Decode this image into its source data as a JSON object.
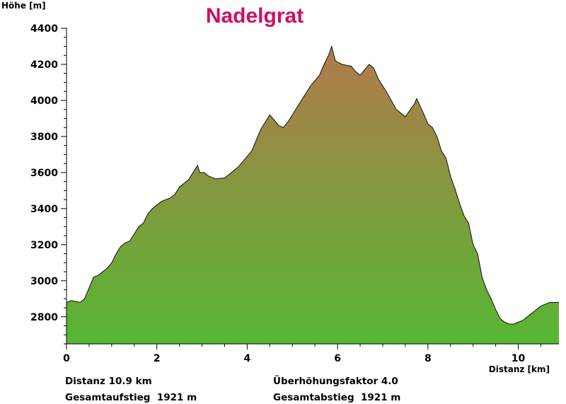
{
  "chart_data": {
    "type": "area",
    "title": "Nadelgrat",
    "ylabel": "Höhe [m]",
    "xlabel": "Distanz [km]",
    "xlim": [
      0,
      10.9
    ],
    "ylim": [
      2650,
      4400
    ],
    "xticks": [
      0,
      2,
      4,
      6,
      8,
      10
    ],
    "yticks": [
      2800,
      3000,
      3200,
      3400,
      3600,
      3800,
      4000,
      4200,
      4400
    ],
    "grid": false,
    "colors": {
      "bottom": "#55b733",
      "top": "#b17a4b",
      "line": "#111111",
      "title": "#cf0e60"
    },
    "series": [
      {
        "x": [
          0,
          0.1,
          0.2,
          0.3,
          0.4,
          0.5,
          0.6,
          0.7,
          0.8,
          0.9,
          1.0,
          1.1,
          1.2,
          1.3,
          1.4,
          1.5,
          1.6,
          1.7,
          1.8,
          1.9,
          2.0,
          2.1,
          2.2,
          2.3,
          2.4,
          2.5,
          2.6,
          2.7,
          2.8,
          2.9,
          2.95,
          3.05,
          3.15,
          3.3,
          3.5,
          3.7,
          3.8,
          4.0,
          4.1,
          4.2,
          4.3,
          4.4,
          4.5,
          4.6,
          4.7,
          4.8,
          4.9,
          5.0,
          5.2,
          5.4,
          5.6,
          5.7,
          5.8,
          5.87,
          5.95,
          6.1,
          6.3,
          6.4,
          6.5,
          6.6,
          6.7,
          6.8,
          6.9,
          7.1,
          7.3,
          7.5,
          7.7,
          7.75,
          7.9,
          8.0,
          8.1,
          8.2,
          8.3,
          8.4,
          8.5,
          8.6,
          8.7,
          8.8,
          8.9,
          9.0,
          9.1,
          9.2,
          9.3,
          9.4,
          9.5,
          9.6,
          9.7,
          9.8,
          9.9,
          10.0,
          10.1,
          10.2,
          10.3,
          10.4,
          10.5,
          10.6,
          10.7,
          10.8,
          10.9
        ],
        "values": [
          2880,
          2890,
          2885,
          2880,
          2900,
          2960,
          3020,
          3030,
          3050,
          3070,
          3100,
          3150,
          3190,
          3210,
          3220,
          3260,
          3300,
          3320,
          3370,
          3400,
          3420,
          3440,
          3450,
          3460,
          3480,
          3520,
          3540,
          3560,
          3600,
          3640,
          3600,
          3600,
          3580,
          3565,
          3570,
          3610,
          3630,
          3690,
          3720,
          3780,
          3840,
          3880,
          3920,
          3890,
          3860,
          3850,
          3880,
          3920,
          4000,
          4080,
          4140,
          4200,
          4250,
          4300,
          4220,
          4200,
          4190,
          4160,
          4140,
          4170,
          4200,
          4180,
          4120,
          4040,
          3950,
          3910,
          3980,
          4010,
          3930,
          3870,
          3850,
          3800,
          3720,
          3680,
          3580,
          3510,
          3430,
          3360,
          3320,
          3200,
          3150,
          3020,
          2950,
          2900,
          2840,
          2790,
          2770,
          2760,
          2760,
          2770,
          2780,
          2800,
          2820,
          2840,
          2860,
          2870,
          2880,
          2880,
          2880
        ]
      }
    ]
  },
  "stats": {
    "distance": "Distanz 10.9 km",
    "ascent": "Gesamtaufstieg  1921 m",
    "exaggeration": "Überhöhungsfaktor 4.0",
    "descent": "Gesamtabstieg  1921 m"
  }
}
